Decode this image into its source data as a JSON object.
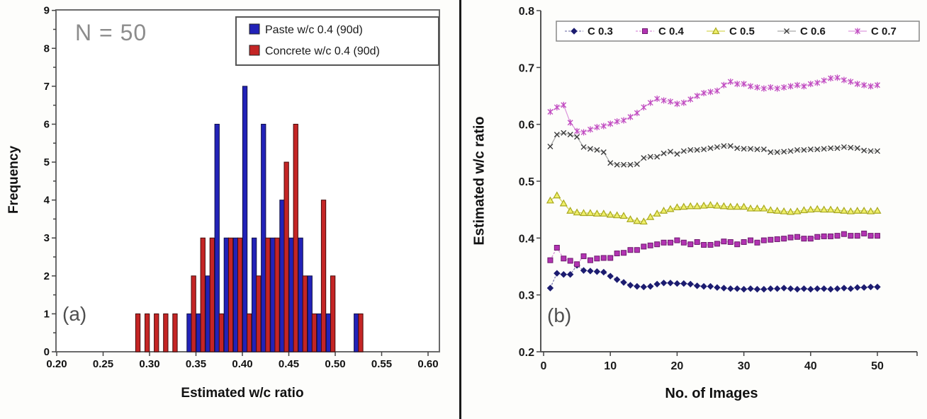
{
  "figure": {
    "background": "#fdfdfb",
    "divider_color": "#1a1a1a",
    "panel_a": {
      "label": "(a)",
      "annotation": "N = 50",
      "x_axis": {
        "title": "Estimated w/c ratio",
        "tick_labels": [
          "0.20",
          "0.25",
          "0.30",
          "0.35",
          "0.40",
          "0.45",
          "0.50",
          "0.55",
          "0.60"
        ],
        "min": 0.2,
        "max": 0.6
      },
      "y_axis": {
        "title": "Frequency",
        "tick_labels": [
          "0",
          "1",
          "2",
          "3",
          "4",
          "5",
          "6",
          "7",
          "8",
          "9"
        ],
        "min": 0,
        "max": 9
      },
      "legend": {
        "items": [
          {
            "label": "Paste w/c 0.4 (90d)",
            "color": "#2222b8"
          },
          {
            "label": "Concrete w/c 0.4 (90d)",
            "color": "#c42525"
          }
        ]
      }
    },
    "panel_b": {
      "label": "(b)",
      "x_axis": {
        "title": "No. of Images",
        "tick_labels": [
          "0",
          "10",
          "20",
          "30",
          "40",
          "50"
        ],
        "min": 0,
        "max": 50
      },
      "y_axis": {
        "title": "Estimated w/c ratio",
        "tick_labels": [
          "0.2",
          "0.3",
          "0.4",
          "0.5",
          "0.6",
          "0.7",
          "0.8"
        ],
        "min": 0.2,
        "max": 0.8
      },
      "legend": {
        "items": [
          {
            "label": "C 0.3"
          },
          {
            "label": "C 0.4"
          },
          {
            "label": "C 0.5"
          },
          {
            "label": "C 0.6"
          },
          {
            "label": "C 0.7"
          }
        ]
      }
    }
  },
  "chart_data": [
    {
      "type": "bar",
      "panel": "a",
      "title": "Histogram of estimated w/c ratio (N = 50 per series)",
      "xlabel": "Estimated w/c ratio",
      "ylabel": "Frequency",
      "xlim": [
        0.2,
        0.6
      ],
      "ylim": [
        0,
        9
      ],
      "annotation": "N = 50",
      "bin_width": 0.01,
      "categories": [
        0.28,
        0.29,
        0.3,
        0.31,
        0.32,
        0.33,
        0.34,
        0.35,
        0.36,
        0.37,
        0.38,
        0.39,
        0.4,
        0.41,
        0.42,
        0.43,
        0.44,
        0.45,
        0.46,
        0.47,
        0.48,
        0.49,
        0.52
      ],
      "series": [
        {
          "name": "Paste w/c 0.4 (90d)",
          "color": "#2222b8",
          "edge": "#101048",
          "values": [
            0,
            0,
            0,
            0,
            0,
            0,
            1,
            1,
            2,
            6,
            3,
            3,
            7,
            3,
            6,
            3,
            4,
            3,
            3,
            2,
            1,
            1,
            1
          ]
        },
        {
          "name": "Concrete w/c 0.4 (90d)",
          "color": "#c42525",
          "edge": "#460b0b",
          "values": [
            1,
            1,
            1,
            1,
            1,
            0,
            2,
            3,
            3,
            1,
            3,
            3,
            1,
            2,
            3,
            3,
            5,
            6,
            2,
            1,
            4,
            2,
            1
          ]
        }
      ]
    },
    {
      "type": "line",
      "panel": "b",
      "title": "Estimated w/c ratio vs number of images",
      "xlabel": "No. of Images",
      "ylabel": "Estimated w/c ratio",
      "xlim": [
        0,
        50
      ],
      "ylim": [
        0.2,
        0.8
      ],
      "x_start": 1,
      "n_points": 50,
      "legend_position": "top",
      "series": [
        {
          "name": "C 0.3",
          "color": "#1c1c70",
          "line_color": "#8080b0",
          "marker": "diamond",
          "dash": true,
          "values": [
            0.312,
            0.338,
            0.336,
            0.336,
            0.352,
            0.343,
            0.342,
            0.341,
            0.34,
            0.333,
            0.327,
            0.322,
            0.317,
            0.315,
            0.314,
            0.315,
            0.319,
            0.321,
            0.321,
            0.32,
            0.32,
            0.319,
            0.316,
            0.315,
            0.315,
            0.313,
            0.312,
            0.311,
            0.311,
            0.31,
            0.311,
            0.31,
            0.31,
            0.311,
            0.311,
            0.312,
            0.311,
            0.31,
            0.311,
            0.31,
            0.311,
            0.311,
            0.31,
            0.311,
            0.312,
            0.311,
            0.313,
            0.313,
            0.314,
            0.314
          ]
        },
        {
          "name": "C 0.4",
          "color": "#b233b2",
          "line_color": "#d98fd9",
          "marker": "square",
          "dash": true,
          "values": [
            0.361,
            0.383,
            0.364,
            0.36,
            0.354,
            0.368,
            0.361,
            0.364,
            0.365,
            0.365,
            0.373,
            0.374,
            0.379,
            0.379,
            0.385,
            0.387,
            0.389,
            0.392,
            0.392,
            0.396,
            0.392,
            0.389,
            0.393,
            0.388,
            0.388,
            0.39,
            0.394,
            0.393,
            0.389,
            0.393,
            0.396,
            0.392,
            0.396,
            0.397,
            0.398,
            0.399,
            0.401,
            0.402,
            0.399,
            0.399,
            0.402,
            0.403,
            0.403,
            0.404,
            0.407,
            0.404,
            0.404,
            0.408,
            0.404,
            0.404
          ]
        },
        {
          "name": "C 0.5",
          "color": "#a8a81e",
          "line_color": "#d6d65a",
          "marker": "triangle",
          "fill": "#efef6a",
          "dash": false,
          "values": [
            0.466,
            0.475,
            0.461,
            0.448,
            0.445,
            0.444,
            0.444,
            0.443,
            0.443,
            0.441,
            0.44,
            0.439,
            0.433,
            0.43,
            0.429,
            0.437,
            0.443,
            0.448,
            0.451,
            0.454,
            0.455,
            0.456,
            0.456,
            0.457,
            0.458,
            0.457,
            0.456,
            0.455,
            0.455,
            0.455,
            0.452,
            0.452,
            0.452,
            0.449,
            0.448,
            0.447,
            0.446,
            0.447,
            0.449,
            0.45,
            0.451,
            0.45,
            0.45,
            0.449,
            0.448,
            0.447,
            0.448,
            0.448,
            0.447,
            0.448
          ]
        },
        {
          "name": "C 0.6",
          "color": "#3c3c3c",
          "line_color": "#a9a9a9",
          "marker": "x",
          "dash": false,
          "values": [
            0.561,
            0.582,
            0.585,
            0.582,
            0.578,
            0.56,
            0.557,
            0.555,
            0.551,
            0.532,
            0.529,
            0.529,
            0.529,
            0.53,
            0.541,
            0.543,
            0.543,
            0.549,
            0.552,
            0.548,
            0.553,
            0.555,
            0.555,
            0.556,
            0.558,
            0.56,
            0.562,
            0.562,
            0.558,
            0.557,
            0.557,
            0.556,
            0.556,
            0.551,
            0.551,
            0.552,
            0.553,
            0.555,
            0.555,
            0.556,
            0.556,
            0.557,
            0.558,
            0.558,
            0.56,
            0.559,
            0.558,
            0.554,
            0.553,
            0.553
          ]
        },
        {
          "name": "C 0.7",
          "color": "#c04ac0",
          "line_color": "#dd9add",
          "marker": "star",
          "dash": false,
          "values": [
            0.622,
            0.63,
            0.634,
            0.603,
            0.588,
            0.586,
            0.591,
            0.595,
            0.597,
            0.601,
            0.605,
            0.607,
            0.613,
            0.62,
            0.63,
            0.638,
            0.645,
            0.642,
            0.64,
            0.636,
            0.638,
            0.644,
            0.65,
            0.655,
            0.657,
            0.659,
            0.669,
            0.675,
            0.671,
            0.671,
            0.667,
            0.665,
            0.663,
            0.665,
            0.663,
            0.665,
            0.667,
            0.669,
            0.667,
            0.671,
            0.673,
            0.677,
            0.681,
            0.682,
            0.678,
            0.675,
            0.671,
            0.669,
            0.667,
            0.669
          ]
        }
      ]
    }
  ]
}
